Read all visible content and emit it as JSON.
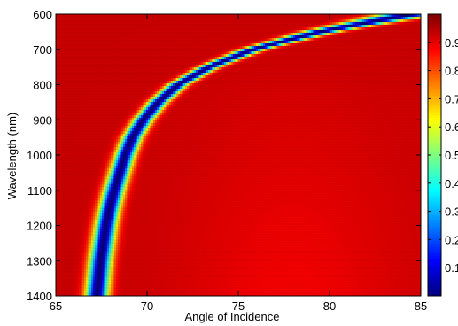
{
  "chart_data": {
    "type": "heatmap",
    "title": "",
    "xlabel": "Angle of Incidence",
    "ylabel": "Wavelength (nm)",
    "xlim": [
      65,
      85
    ],
    "ylim": [
      600,
      1400
    ],
    "y_reversed": true,
    "x_ticks": [
      "65",
      "70",
      "75",
      "80",
      "85"
    ],
    "y_ticks": [
      "600",
      "700",
      "800",
      "900",
      "1000",
      "1100",
      "1200",
      "1300",
      "1400"
    ],
    "colormap": "jet",
    "color_range": [
      0,
      1
    ],
    "colorbar_ticks": [
      "0.1",
      "0.2",
      "0.3",
      "0.4",
      "0.5",
      "0.6",
      "0.7",
      "0.8",
      "0.9"
    ],
    "resonance_curve": {
      "description_values": "angle of minimum reflectance per wavelength",
      "wavelength": [
        600,
        650,
        700,
        750,
        800,
        850,
        900,
        950,
        1000,
        1050,
        1100,
        1150,
        1200,
        1250,
        1300,
        1350,
        1400
      ],
      "angle": [
        84.5,
        79.5,
        75.8,
        73.4,
        71.7,
        70.6,
        69.8,
        69.2,
        68.8,
        68.5,
        68.2,
        67.95,
        67.75,
        67.6,
        67.45,
        67.35,
        67.25
      ],
      "min_value": 0.0,
      "background_value": 0.92
    }
  }
}
